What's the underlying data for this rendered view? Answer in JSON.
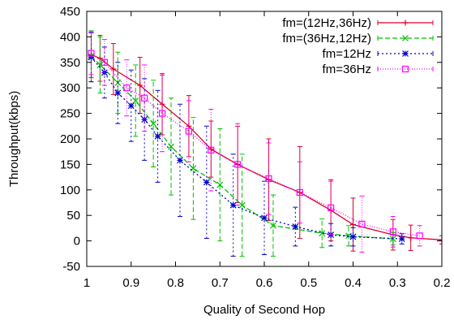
{
  "chart_data": {
    "type": "line",
    "xlabel": "Quality of Second Hop",
    "ylabel": "Throughput(kbps)",
    "xlim": [
      1,
      0.2
    ],
    "ylim": [
      -50,
      450
    ],
    "x_reversed": true,
    "grid": false,
    "legend_position": "top-right",
    "x_ticks": [
      "1",
      "0.9",
      "0.8",
      "0.7",
      "0.6",
      "0.5",
      "0.4",
      "0.3",
      "0.2"
    ],
    "x_tick_values": [
      1,
      0.9,
      0.8,
      0.7,
      0.6,
      0.5,
      0.4,
      0.3,
      0.2
    ],
    "y_ticks": [
      "-50",
      "0",
      "50",
      "100",
      "150",
      "200",
      "250",
      "300",
      "350",
      "400",
      "450"
    ],
    "y_tick_values": [
      -50,
      0,
      50,
      100,
      150,
      200,
      250,
      300,
      350,
      400,
      450
    ],
    "series": [
      {
        "name": "fm=(12Hz,36Hz)",
        "color": "#d9002a",
        "marker": "plus",
        "dash": "",
        "points": [
          {
            "x": 0.99,
            "y": 365,
            "err": 45
          },
          {
            "x": 0.97,
            "y": 358,
            "err": 45
          },
          {
            "x": 0.94,
            "y": 337,
            "err": 50
          },
          {
            "x": 0.88,
            "y": 305,
            "err": 55
          },
          {
            "x": 0.83,
            "y": 268,
            "err": 60
          },
          {
            "x": 0.77,
            "y": 225,
            "err": 60
          },
          {
            "x": 0.72,
            "y": 180,
            "err": 55
          },
          {
            "x": 0.66,
            "y": 150,
            "err": 75
          },
          {
            "x": 0.59,
            "y": 120,
            "err": 80
          },
          {
            "x": 0.52,
            "y": 95,
            "err": 90
          },
          {
            "x": 0.45,
            "y": 60,
            "err": 60
          },
          {
            "x": 0.4,
            "y": 32,
            "err": 52
          },
          {
            "x": 0.31,
            "y": 12,
            "err": 30
          },
          {
            "x": 0.27,
            "y": 6,
            "err": 25
          },
          {
            "x": 0.2,
            "y": 2,
            "err": 8
          }
        ]
      },
      {
        "name": "fm=(36Hz,12Hz)",
        "color": "#00c000",
        "marker": "x",
        "dash": "6,3",
        "points": [
          {
            "x": 0.99,
            "y": 362,
            "err": 50
          },
          {
            "x": 0.97,
            "y": 345,
            "err": 55
          },
          {
            "x": 0.93,
            "y": 310,
            "err": 60
          },
          {
            "x": 0.89,
            "y": 275,
            "err": 70
          },
          {
            "x": 0.85,
            "y": 230,
            "err": 85
          },
          {
            "x": 0.81,
            "y": 185,
            "err": 95
          },
          {
            "x": 0.76,
            "y": 142,
            "err": 100
          },
          {
            "x": 0.7,
            "y": 110,
            "err": 110
          },
          {
            "x": 0.65,
            "y": 70,
            "err": 100
          },
          {
            "x": 0.58,
            "y": 30,
            "err": 60
          },
          {
            "x": 0.47,
            "y": 15,
            "err": 28
          },
          {
            "x": 0.41,
            "y": 10,
            "err": 20
          },
          {
            "x": 0.31,
            "y": 4,
            "err": 12
          }
        ]
      },
      {
        "name": "fm=12Hz",
        "color": "#0000cc",
        "marker": "star",
        "dash": "2,3",
        "points": [
          {
            "x": 0.99,
            "y": 360,
            "err": 48
          },
          {
            "x": 0.96,
            "y": 330,
            "err": 50
          },
          {
            "x": 0.93,
            "y": 290,
            "err": 60
          },
          {
            "x": 0.9,
            "y": 265,
            "err": 70
          },
          {
            "x": 0.87,
            "y": 238,
            "err": 80
          },
          {
            "x": 0.84,
            "y": 205,
            "err": 90
          },
          {
            "x": 0.79,
            "y": 158,
            "err": 110
          },
          {
            "x": 0.73,
            "y": 115,
            "err": 110
          },
          {
            "x": 0.67,
            "y": 70,
            "err": 100
          },
          {
            "x": 0.6,
            "y": 45,
            "err": 72
          },
          {
            "x": 0.53,
            "y": 28,
            "err": 38
          },
          {
            "x": 0.45,
            "y": 12,
            "err": 22
          },
          {
            "x": 0.4,
            "y": 8,
            "err": 18
          },
          {
            "x": 0.29,
            "y": 4,
            "err": 10
          }
        ]
      },
      {
        "name": "fm=36Hz",
        "color": "#ff00ff",
        "marker": "square",
        "dash": "1,2",
        "points": [
          {
            "x": 0.99,
            "y": 368,
            "err": 42
          },
          {
            "x": 0.96,
            "y": 350,
            "err": 45
          },
          {
            "x": 0.91,
            "y": 300,
            "err": 55
          },
          {
            "x": 0.87,
            "y": 280,
            "err": 65
          },
          {
            "x": 0.83,
            "y": 250,
            "err": 75
          },
          {
            "x": 0.77,
            "y": 215,
            "err": 60
          },
          {
            "x": 0.72,
            "y": 178,
            "err": 80
          },
          {
            "x": 0.66,
            "y": 150,
            "err": 80
          },
          {
            "x": 0.59,
            "y": 122,
            "err": 70
          },
          {
            "x": 0.52,
            "y": 95,
            "err": 60
          },
          {
            "x": 0.45,
            "y": 65,
            "err": 52
          },
          {
            "x": 0.38,
            "y": 33,
            "err": 55
          },
          {
            "x": 0.31,
            "y": 18,
            "err": 30
          },
          {
            "x": 0.25,
            "y": 10,
            "err": 20
          }
        ]
      }
    ]
  }
}
